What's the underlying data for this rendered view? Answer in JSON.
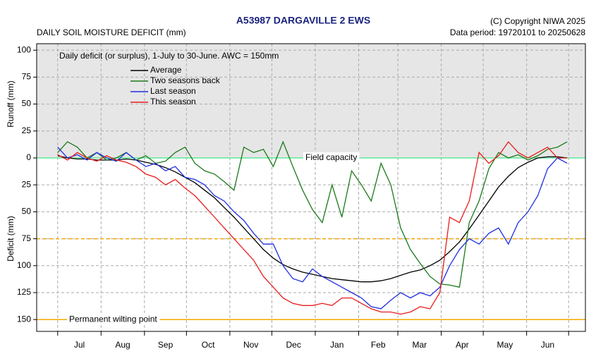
{
  "chart_data": {
    "type": "line",
    "title": "A53987  DARGAVILLE 2 EWS",
    "copyright": "(C) Copyright NIWA  2025",
    "data_period": "Data period:  19720101  to  20250628",
    "subtitle": "DAILY SOIL MOISTURE DEFICIT (mm)",
    "annotation": "Daily deficit (or surplus), 1-July to 30-June.  AWC = 150mm",
    "y_label_top": "Runoff (mm)",
    "y_label_bottom": "Deficit (mm)",
    "categories": [
      "Jul",
      "Aug",
      "Sep",
      "Oct",
      "Nov",
      "Dec",
      "Jan",
      "Feb",
      "Mar",
      "Apr",
      "May",
      "Jun"
    ],
    "xticks": [
      0,
      31,
      62,
      92,
      123,
      153,
      184,
      215,
      243,
      274,
      304,
      335,
      365
    ],
    "xlim": [
      -15,
      377
    ],
    "ylim": [
      -161,
      106
    ],
    "yticks": [
      100,
      75,
      50,
      25,
      0,
      {
        "value": -25,
        "label": "25"
      },
      {
        "value": -50,
        "label": "50"
      },
      {
        "value": -75,
        "label": "75"
      },
      {
        "value": -100,
        "label": "100"
      },
      {
        "value": -125,
        "label": "125"
      },
      {
        "value": -150,
        "label": "150"
      }
    ],
    "grid": true,
    "surplus_shade": "#e6e6e6",
    "reference_lines": [
      {
        "value": 0,
        "label": "Field capacity",
        "color": "#5ee89a",
        "dashed": false
      },
      {
        "value": -75,
        "color": "#f5a800",
        "dashed": true
      },
      {
        "value": -150,
        "label": "Permanent wilting point",
        "color": "#f5a800",
        "dashed": false
      }
    ],
    "x": [
      0,
      7,
      14,
      21,
      28,
      35,
      42,
      49,
      56,
      63,
      70,
      77,
      84,
      91,
      98,
      105,
      112,
      119,
      126,
      133,
      140,
      147,
      154,
      161,
      168,
      175,
      182,
      189,
      196,
      203,
      210,
      217,
      224,
      231,
      238,
      245,
      252,
      259,
      266,
      273,
      280,
      287,
      294,
      301,
      308,
      315,
      322,
      329,
      336,
      343,
      350,
      357,
      364
    ],
    "series": [
      {
        "name": "Average",
        "color": "#000000",
        "values": [
          2,
          0,
          -1,
          -1,
          -2,
          -2,
          -2,
          -1,
          -2,
          -4,
          -6,
          -9,
          -13,
          -18,
          -23,
          -30,
          -37,
          -46,
          -55,
          -65,
          -75,
          -85,
          -93,
          -99,
          -103,
          -106,
          -108,
          -110,
          -112,
          -113,
          -114,
          -115,
          -115,
          -114,
          -112,
          -109,
          -106,
          -104,
          -100,
          -95,
          -87,
          -78,
          -66,
          -53,
          -40,
          -27,
          -17,
          -9,
          -4,
          0,
          1,
          1,
          0
        ]
      },
      {
        "name": "Two seasons back",
        "color": "#1a7a1a",
        "values": [
          5,
          15,
          10,
          0,
          5,
          -2,
          0,
          5,
          -2,
          2,
          -5,
          -3,
          5,
          10,
          -5,
          -12,
          -15,
          -22,
          -30,
          10,
          5,
          8,
          -8,
          15,
          -8,
          -30,
          -48,
          -60,
          -25,
          -55,
          -12,
          -25,
          -40,
          -5,
          -25,
          -65,
          -85,
          -98,
          -110,
          -117,
          -118,
          -120,
          -60,
          -40,
          -10,
          5,
          0,
          3,
          -2,
          2,
          8,
          10,
          15
        ]
      },
      {
        "name": "Last season",
        "color": "#1f2fe0",
        "values": [
          10,
          0,
          3,
          -2,
          5,
          0,
          -3,
          5,
          -2,
          -8,
          -5,
          -12,
          -8,
          -18,
          -20,
          -25,
          -35,
          -40,
          -50,
          -58,
          -70,
          -80,
          -80,
          -100,
          -112,
          -115,
          -103,
          -110,
          -115,
          -120,
          -125,
          -130,
          -138,
          -140,
          -132,
          -125,
          -130,
          -125,
          -128,
          -120,
          -100,
          -85,
          -75,
          -80,
          -70,
          -65,
          -80,
          -60,
          -50,
          -35,
          -10,
          0,
          -5
        ]
      },
      {
        "name": "This season",
        "color": "#e81c1c",
        "values": [
          3,
          -2,
          5,
          0,
          -3,
          2,
          -2,
          -4,
          -8,
          -15,
          -18,
          -25,
          -20,
          -28,
          -35,
          -45,
          -55,
          -65,
          -75,
          -85,
          -95,
          -110,
          -120,
          -130,
          -135,
          -137,
          -137,
          -135,
          -137,
          -130,
          -130,
          -135,
          -140,
          -143,
          -143,
          -145,
          -143,
          -138,
          -140,
          -125,
          -55,
          -60,
          -40,
          5,
          -5,
          2,
          15,
          5,
          0,
          5,
          10,
          0,
          0
        ]
      }
    ]
  }
}
